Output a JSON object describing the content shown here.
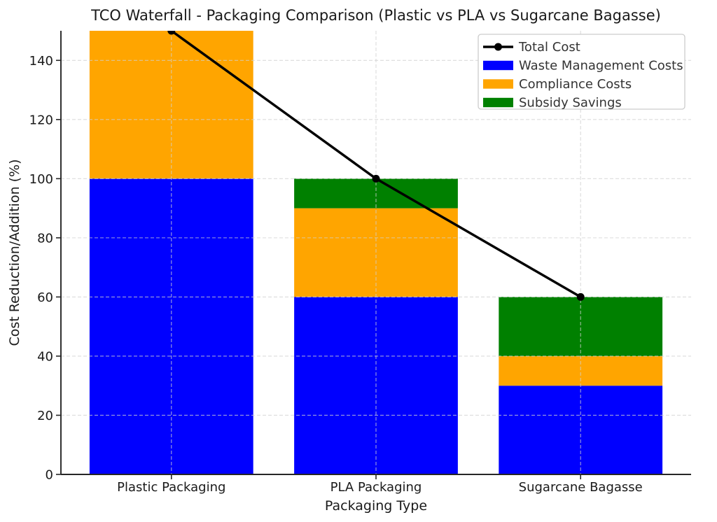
{
  "chart_data": {
    "type": "bar",
    "subtype": "stacked-bars-with-total-line",
    "title": "TCO Waterfall - Packaging Comparison (Plastic vs PLA vs Sugarcane Bagasse)",
    "xlabel": "Packaging Type",
    "ylabel": "Cost Reduction/Addition (%)",
    "categories": [
      "Plastic Packaging",
      "PLA Packaging",
      "Sugarcane Bagasse"
    ],
    "series": [
      {
        "name": "Waste Management Costs",
        "color": "#0000ff",
        "values": [
          100,
          60,
          30
        ]
      },
      {
        "name": "Compliance Costs",
        "color": "#ffa500",
        "values": [
          50,
          30,
          10
        ]
      },
      {
        "name": "Subsidy Savings",
        "color": "#008000",
        "values": [
          0,
          10,
          20
        ]
      }
    ],
    "line_series": {
      "name": "Total Cost",
      "color": "#000000",
      "values": [
        150,
        100,
        60
      ]
    },
    "ylim": [
      0,
      150
    ],
    "xlim": [
      -0.54,
      2.54
    ],
    "yticks": [
      0,
      20,
      40,
      60,
      80,
      100,
      120,
      140
    ],
    "bar_width": 0.8,
    "grid": true,
    "grid_style": "dashed",
    "legend_position": "upper right",
    "legend_entries": [
      "Total Cost",
      "Waste Management Costs",
      "Compliance Costs",
      "Subsidy Savings"
    ]
  }
}
